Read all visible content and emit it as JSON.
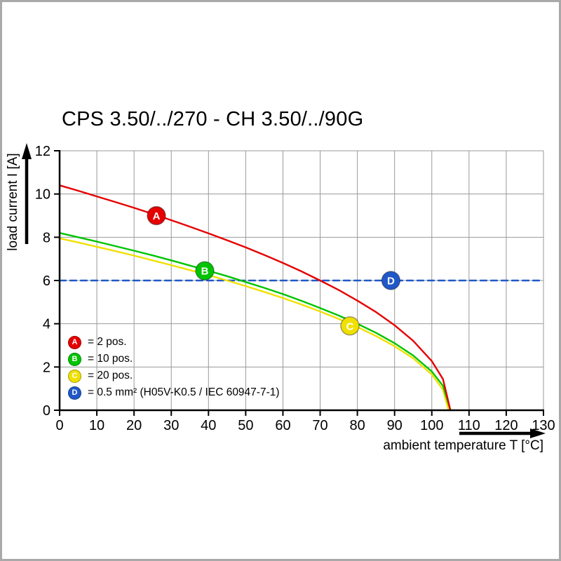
{
  "chart_data": {
    "type": "line",
    "title": "CPS 3.50/../270 - CH 3.50/../90G",
    "xlabel": "ambient temperature T [°C]",
    "ylabel": "load current I [A]",
    "xlim": [
      0,
      130
    ],
    "ylim": [
      0,
      12
    ],
    "xticks": [
      0,
      10,
      20,
      30,
      40,
      50,
      60,
      70,
      80,
      90,
      100,
      110,
      120,
      130
    ],
    "yticks": [
      0,
      2,
      4,
      6,
      8,
      10,
      12
    ],
    "grid": true,
    "grid_color": "#999999",
    "axis_color": "#000000",
    "legend_position": "inside lower-left",
    "series": [
      {
        "name": "A",
        "label": "2 pos.",
        "color": "#e60000",
        "style": "solid",
        "points": [
          [
            0,
            10.4
          ],
          [
            5,
            10.15
          ],
          [
            10,
            9.89
          ],
          [
            15,
            9.63
          ],
          [
            20,
            9.36
          ],
          [
            25,
            9.08
          ],
          [
            30,
            8.79
          ],
          [
            35,
            8.49
          ],
          [
            40,
            8.18
          ],
          [
            45,
            7.86
          ],
          [
            50,
            7.53
          ],
          [
            55,
            7.18
          ],
          [
            60,
            6.81
          ],
          [
            65,
            6.42
          ],
          [
            70,
            6.0
          ],
          [
            75,
            5.56
          ],
          [
            80,
            5.07
          ],
          [
            85,
            4.54
          ],
          [
            90,
            3.93
          ],
          [
            95,
            3.21
          ],
          [
            100,
            2.27
          ],
          [
            103,
            1.44
          ],
          [
            105,
            0
          ]
        ]
      },
      {
        "name": "B",
        "label": "10 pos.",
        "color": "#00c400",
        "style": "solid",
        "points": [
          [
            0,
            8.2
          ],
          [
            5,
            8.0
          ],
          [
            10,
            7.8
          ],
          [
            15,
            7.59
          ],
          [
            20,
            7.38
          ],
          [
            25,
            7.16
          ],
          [
            30,
            6.93
          ],
          [
            35,
            6.69
          ],
          [
            40,
            6.45
          ],
          [
            45,
            6.2
          ],
          [
            50,
            5.93
          ],
          [
            55,
            5.66
          ],
          [
            60,
            5.37
          ],
          [
            65,
            5.06
          ],
          [
            70,
            4.73
          ],
          [
            75,
            4.38
          ],
          [
            80,
            4.0
          ],
          [
            85,
            3.58
          ],
          [
            90,
            3.1
          ],
          [
            95,
            2.53
          ],
          [
            100,
            1.79
          ],
          [
            103,
            1.13
          ],
          [
            105,
            0
          ]
        ]
      },
      {
        "name": "C",
        "label": "20 pos.",
        "color": "#f0e000",
        "style": "solid",
        "points": [
          [
            0,
            7.95
          ],
          [
            5,
            7.76
          ],
          [
            10,
            7.56
          ],
          [
            15,
            7.36
          ],
          [
            20,
            7.15
          ],
          [
            25,
            6.93
          ],
          [
            30,
            6.71
          ],
          [
            35,
            6.48
          ],
          [
            40,
            6.25
          ],
          [
            45,
            6.0
          ],
          [
            50,
            5.74
          ],
          [
            55,
            5.47
          ],
          [
            60,
            5.19
          ],
          [
            65,
            4.89
          ],
          [
            70,
            4.57
          ],
          [
            75,
            4.22
          ],
          [
            80,
            3.85
          ],
          [
            85,
            3.43
          ],
          [
            90,
            2.96
          ],
          [
            95,
            2.4
          ],
          [
            100,
            1.65
          ],
          [
            103,
            0.95
          ],
          [
            104.5,
            0
          ]
        ]
      },
      {
        "name": "D",
        "label": "0.5 mm² (H05V-K0.5 / IEC 60947-7-1)",
        "color": "#2058c8",
        "style": "dashed",
        "points": [
          [
            0,
            6
          ],
          [
            130,
            6
          ]
        ]
      }
    ],
    "markers": [
      {
        "letter": "A",
        "x": 26,
        "y": 9.0,
        "color": "#e60000"
      },
      {
        "letter": "B",
        "x": 39,
        "y": 6.45,
        "color": "#00c400"
      },
      {
        "letter": "C",
        "x": 78,
        "y": 3.9,
        "color": "#f0e000"
      },
      {
        "letter": "D",
        "x": 89,
        "y": 6.0,
        "color": "#2058c8"
      }
    ]
  },
  "legend": {
    "items": [
      {
        "letter": "A",
        "label": "= 2 pos.",
        "color": "#e60000"
      },
      {
        "letter": "B",
        "label": "= 10 pos.",
        "color": "#00c400"
      },
      {
        "letter": "C",
        "label": "= 20 pos.",
        "color": "#f0e000"
      },
      {
        "letter": "D",
        "label": "= 0.5 mm² (H05V-K0.5 / IEC 60947-7-1)",
        "color": "#2058c8"
      }
    ]
  }
}
